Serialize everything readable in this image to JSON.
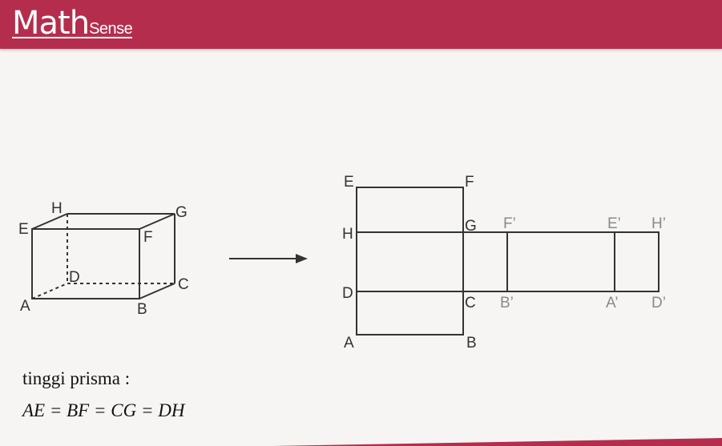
{
  "header": {
    "logo_main": "Math",
    "logo_sub": "Sense",
    "accent_color": "#b52d4c"
  },
  "prism": {
    "vertex_labels": {
      "A": "A",
      "B": "B",
      "C": "C",
      "D": "D",
      "E": "E",
      "F": "F",
      "G": "G",
      "H": "H"
    }
  },
  "net": {
    "labels": {
      "E": "E",
      "F": "F",
      "H": "H",
      "G": "G",
      "D": "D",
      "C": "C",
      "A": "A",
      "B": "B",
      "F_prime": "F’",
      "E_prime": "E’",
      "H_prime": "H’",
      "B_prime": "B’",
      "A_prime": "A’",
      "D_prime": "D’"
    }
  },
  "arrow_icon": "right-arrow-icon",
  "notes": {
    "line1": "tinggi prisma :",
    "line2": "AE = BF = CG = DH"
  }
}
